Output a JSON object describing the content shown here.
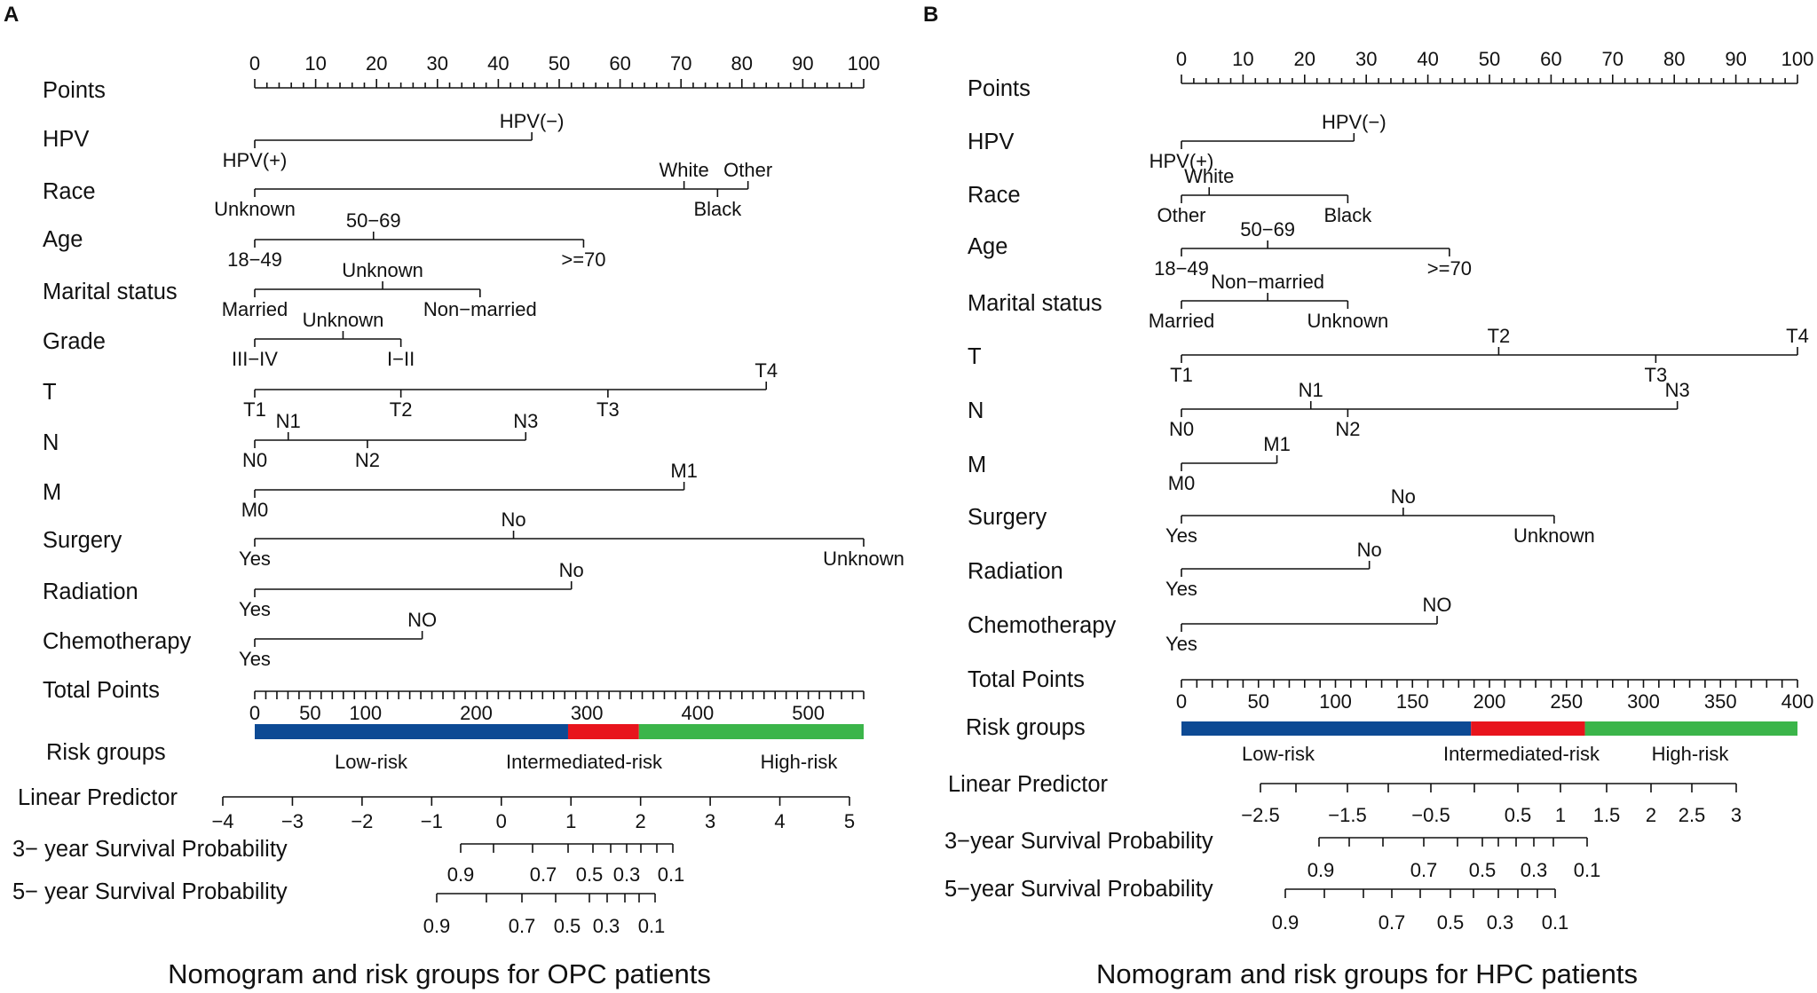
{
  "chart_data": [
    {
      "type": "nomogram",
      "panel_label": "A",
      "caption": "Nomogram and risk groups for OPC patients",
      "points_axis": {
        "label": "Points",
        "range": [
          0,
          100
        ],
        "major_ticks": [
          0,
          10,
          20,
          30,
          40,
          50,
          60,
          70,
          80,
          90,
          100
        ],
        "minor_step": 2
      },
      "predictors": [
        {
          "name": "HPV",
          "levels": [
            {
              "label": "HPV(+)",
              "points": 0
            },
            {
              "label": "HPV(−)",
              "points": 45.5
            }
          ]
        },
        {
          "name": "Race",
          "levels": [
            {
              "label": "Unknown",
              "points": 0
            },
            {
              "label": "White",
              "points": 70.5
            },
            {
              "label": "Black",
              "points": 76
            },
            {
              "label": "Other",
              "points": 81
            }
          ]
        },
        {
          "name": "Age",
          "levels": [
            {
              "label": "18−49",
              "points": 0
            },
            {
              "label": "50−69",
              "points": 19.5
            },
            {
              "label": ">=70",
              "points": 54
            }
          ]
        },
        {
          "name": "Marital status",
          "levels": [
            {
              "label": "Married",
              "points": 0
            },
            {
              "label": "Unknown",
              "points": 21
            },
            {
              "label": "Non−married",
              "points": 37
            }
          ]
        },
        {
          "name": "Grade",
          "levels": [
            {
              "label": "III−IV",
              "points": 0
            },
            {
              "label": "Unknown",
              "points": 14.5
            },
            {
              "label": "I−II",
              "points": 24
            }
          ]
        },
        {
          "name": "T",
          "levels": [
            {
              "label": "T1",
              "points": 0
            },
            {
              "label": "T2",
              "points": 24
            },
            {
              "label": "T3",
              "points": 58
            },
            {
              "label": "T4",
              "points": 84
            }
          ]
        },
        {
          "name": "N",
          "levels": [
            {
              "label": "N0",
              "points": 0
            },
            {
              "label": "N1",
              "points": 5.5
            },
            {
              "label": "N2",
              "points": 18.5
            },
            {
              "label": "N3",
              "points": 44.5
            }
          ]
        },
        {
          "name": "M",
          "levels": [
            {
              "label": "M0",
              "points": 0
            },
            {
              "label": "M1",
              "points": 70.5
            }
          ]
        },
        {
          "name": "Surgery",
          "levels": [
            {
              "label": "Yes",
              "points": 0
            },
            {
              "label": "No",
              "points": 42.5
            },
            {
              "label": "Unknown",
              "points": 100
            }
          ]
        },
        {
          "name": "Radiation",
          "levels": [
            {
              "label": "Yes",
              "points": 0
            },
            {
              "label": "No",
              "points": 52
            }
          ]
        },
        {
          "name": "Chemotherapy",
          "levels": [
            {
              "label": "Yes",
              "points": 0
            },
            {
              "label": "NO",
              "points": 27.5
            }
          ]
        }
      ],
      "total_points": {
        "label": "Total Points",
        "range": [
          0,
          550
        ],
        "tick_labels": [
          "0",
          "50",
          "100",
          "200",
          "300",
          "400",
          "500"
        ]
      },
      "risk_groups": {
        "label": "Risk groups",
        "groups": [
          {
            "name": "Low-risk",
            "from": 0,
            "to": 283,
            "color": "#0d4a94"
          },
          {
            "name": "Intermediated-risk",
            "from": 283,
            "to": 347,
            "color": "#e8141c"
          },
          {
            "name": "High-risk",
            "from": 347,
            "to": 550,
            "color": "#3bb54a"
          }
        ]
      },
      "linear_predictor": {
        "label": "Linear Predictor",
        "range": [
          -4,
          5
        ],
        "tick_labels": [
          "−4",
          "−3",
          "−2",
          "−1",
          "0",
          "1",
          "2",
          "3",
          "4",
          "5"
        ]
      },
      "survival_3yr": {
        "label": "3− year Survival Probability",
        "tick_labels": [
          "0.9",
          "0.7",
          "0.5",
          "0.3",
          "0.1"
        ]
      },
      "survival_5yr": {
        "label": "5− year Survival Probability",
        "tick_labels": [
          "0.9",
          "0.7",
          "0.5",
          "0.3",
          "0.1"
        ]
      }
    },
    {
      "type": "nomogram",
      "panel_label": "B",
      "caption": "Nomogram and risk groups for HPC patients",
      "points_axis": {
        "label": "Points",
        "range": [
          0,
          100
        ],
        "major_ticks": [
          0,
          10,
          20,
          30,
          40,
          50,
          60,
          70,
          80,
          90,
          100
        ],
        "minor_step": 2
      },
      "predictors": [
        {
          "name": "HPV",
          "levels": [
            {
              "label": "HPV(+)",
              "points": 0
            },
            {
              "label": "HPV(−)",
              "points": 28
            }
          ]
        },
        {
          "name": "Race",
          "levels": [
            {
              "label": "Other",
              "points": 0
            },
            {
              "label": "White",
              "points": 4.5
            },
            {
              "label": "Black",
              "points": 27
            }
          ]
        },
        {
          "name": "Age",
          "levels": [
            {
              "label": "18−49",
              "points": 0
            },
            {
              "label": "50−69",
              "points": 14
            },
            {
              "label": ">=70",
              "points": 43.5
            }
          ]
        },
        {
          "name": "Marital status",
          "levels": [
            {
              "label": "Married",
              "points": 0
            },
            {
              "label": "Non−married",
              "points": 14
            },
            {
              "label": "Unknown",
              "points": 27
            }
          ]
        },
        {
          "name": "T",
          "levels": [
            {
              "label": "T1",
              "points": 0
            },
            {
              "label": "T2",
              "points": 51.5
            },
            {
              "label": "T3",
              "points": 77
            },
            {
              "label": "T4",
              "points": 100
            }
          ]
        },
        {
          "name": "N",
          "levels": [
            {
              "label": "N0",
              "points": 0
            },
            {
              "label": "N1",
              "points": 21
            },
            {
              "label": "N2",
              "points": 27
            },
            {
              "label": "N3",
              "points": 80.5
            }
          ]
        },
        {
          "name": "M",
          "levels": [
            {
              "label": "M0",
              "points": 0
            },
            {
              "label": "M1",
              "points": 15.5
            }
          ]
        },
        {
          "name": "Surgery",
          "levels": [
            {
              "label": "Yes",
              "points": 0
            },
            {
              "label": "No",
              "points": 36
            },
            {
              "label": "Unknown",
              "points": 60.5
            }
          ]
        },
        {
          "name": "Radiation",
          "levels": [
            {
              "label": "Yes",
              "points": 0
            },
            {
              "label": "No",
              "points": 30.5
            }
          ]
        },
        {
          "name": "Chemotherapy",
          "levels": [
            {
              "label": "Yes",
              "points": 0
            },
            {
              "label": "NO",
              "points": 41.5
            }
          ]
        }
      ],
      "total_points": {
        "label": "Total Points",
        "range": [
          0,
          400
        ],
        "tick_labels": [
          "0",
          "50",
          "100",
          "150",
          "200",
          "250",
          "300",
          "350",
          "400"
        ]
      },
      "risk_groups": {
        "label": "Risk groups",
        "groups": [
          {
            "name": "Low-risk",
            "from": 0,
            "to": 188,
            "color": "#0d4a94"
          },
          {
            "name": "Intermediated-risk",
            "from": 188,
            "to": 262,
            "color": "#e8141c"
          },
          {
            "name": "High-risk",
            "from": 262,
            "to": 400,
            "color": "#3bb54a"
          }
        ]
      },
      "linear_predictor": {
        "label": "Linear Predictor",
        "tick_labels": [
          "−2.5",
          "−1.5",
          "−0.5",
          "0.5",
          "1",
          "1.5",
          "2",
          "2.5",
          "3"
        ]
      },
      "survival_3yr": {
        "label": "3−year Survival Probability",
        "tick_labels": [
          "0.9",
          "0.7",
          "0.5",
          "0.3",
          "0.1"
        ]
      },
      "survival_5yr": {
        "label": "5−year Survival Probability",
        "tick_labels": [
          "0.9",
          "0.7",
          "0.5",
          "0.3",
          "0.1"
        ]
      }
    }
  ]
}
